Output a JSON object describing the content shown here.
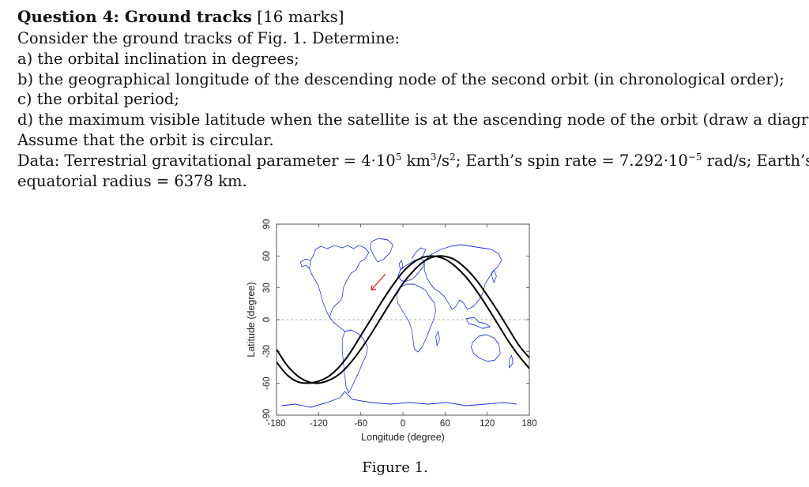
{
  "question": {
    "title": "Question 4: Ground tracks",
    "marks": "[16 marks]",
    "intro": "Consider the ground tracks of Fig. 1. Determine:",
    "parts": [
      "a) the orbital inclination in degrees;",
      "b) the geographical longitude of the descending node of the second orbit (in chronological order);",
      "c) the orbital period;",
      "d) the maximum visible latitude when the satellite is at the ascending node of the orbit (draw a diagram)."
    ],
    "assumption": "Assume that the orbit is circular.",
    "data_line": {
      "p1": "Data: Terrestrial gravitational parameter = 4·10",
      "e1": "5",
      "p2": " km",
      "e2": "3",
      "p3": "/s",
      "e3": "2",
      "p4": "; Earth’s spin rate = 7.292·10",
      "e4": "−5",
      "p5": " rad/s; Earth’s"
    },
    "data_line2": "equatorial radius = 6378 km."
  },
  "figure": {
    "caption": "Figure 1.",
    "colors": {
      "coast": "#1a2fcf",
      "track": "#000000",
      "arrow": "#d62020",
      "equator": "#999999"
    }
  },
  "chart_data": {
    "type": "line",
    "xlabel": "Longitude (degree)",
    "ylabel": "Latitude (degree)",
    "xlim": [
      -180,
      180
    ],
    "ylim": [
      -90,
      90
    ],
    "xticks": [
      "-180",
      "-120",
      "-60",
      "0",
      "60",
      "120",
      "180"
    ],
    "yticks": [
      "90",
      "60",
      "30",
      "0",
      "-30",
      "-60",
      "-90"
    ],
    "series": [
      {
        "x": [
          -180,
          -165,
          -150,
          -135,
          -120,
          -105,
          -90,
          -75,
          -60,
          -45,
          -30,
          -15,
          0,
          15,
          30,
          45,
          60,
          75,
          90,
          105,
          120,
          135,
          150,
          165,
          180
        ],
        "y": [
          -40,
          -52,
          -58.5,
          -59.8,
          -58,
          -53,
          -44,
          -31,
          -15,
          1,
          17,
          32,
          45,
          54,
          59,
          59.8,
          57,
          50,
          40,
          27,
          12,
          -4,
          -20,
          -34,
          -46
        ]
      },
      {
        "x": [
          -180,
          -165,
          -150,
          -135,
          -120,
          -105,
          -90,
          -75,
          -60,
          -45,
          -30,
          -15,
          0,
          15,
          30,
          45,
          60,
          75,
          90,
          105,
          120,
          135,
          150,
          165,
          180
        ],
        "y": [
          -28,
          -43,
          -53,
          -58.5,
          -59.8,
          -57,
          -51,
          -41,
          -28,
          -13,
          3,
          19,
          34,
          46,
          55,
          59.5,
          59.6,
          56,
          48,
          37,
          23,
          8,
          -8,
          -24,
          -36
        ]
      }
    ]
  }
}
